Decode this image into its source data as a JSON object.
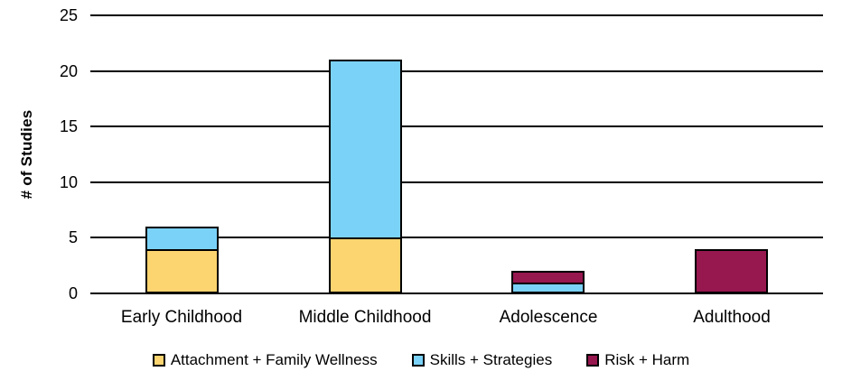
{
  "chart_data": {
    "type": "bar",
    "stacked": true,
    "title": "",
    "categories": [
      "Early Childhood",
      "Middle Childhood",
      "Adolescence",
      "Adulthood"
    ],
    "series": [
      {
        "name": "Attachment + Family Wellness",
        "color": "#FCD470",
        "values": [
          4,
          5,
          0,
          0
        ]
      },
      {
        "name": "Skills + Strategies",
        "color": "#7BD2F9",
        "values": [
          2,
          16,
          1,
          0
        ]
      },
      {
        "name": "Risk + Harm",
        "color": "#97174F",
        "values": [
          0,
          0,
          1,
          4
        ]
      }
    ],
    "totals": [
      6,
      21,
      2,
      4
    ],
    "xlabel": "",
    "ylabel": "# of Studies",
    "ylim": [
      0,
      25
    ],
    "yticks": [
      0,
      5,
      10,
      15,
      20,
      25
    ],
    "grid": true,
    "gridline_color": "#000000",
    "bar_border_color": "#000000",
    "legend_position": "bottom",
    "background_color": "#FFFFFF",
    "text_color": "#000000"
  }
}
